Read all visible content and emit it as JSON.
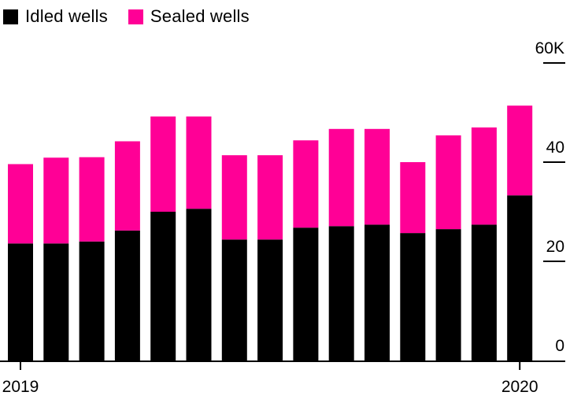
{
  "chart_data": {
    "type": "bar",
    "stacked": true,
    "title": "",
    "xlabel": "",
    "ylabel": "",
    "ylim": [
      0,
      60
    ],
    "y_ticks": [
      0,
      20,
      40,
      60
    ],
    "y_tick_labels": [
      "0",
      "20",
      "40",
      "60K"
    ],
    "x_tick_labels": [
      "2019",
      "2020"
    ],
    "x_tick_indices": [
      0,
      14
    ],
    "categories": [
      "2019",
      "",
      "",
      "",
      "",
      "",
      "",
      "",
      "",
      "",
      "",
      "",
      "",
      "",
      "2020"
    ],
    "series": [
      {
        "name": "Idled wells",
        "color": "#000000",
        "values": [
          23.6,
          23.6,
          24.0,
          26.2,
          30.0,
          30.6,
          24.4,
          24.4,
          26.8,
          27.1,
          27.4,
          25.7,
          26.5,
          27.4,
          33.3
        ]
      },
      {
        "name": "Sealed wells",
        "color": "#ff0096",
        "values": [
          16.0,
          17.3,
          17.0,
          18.0,
          19.2,
          18.6,
          17.0,
          17.0,
          17.6,
          19.6,
          19.3,
          14.3,
          18.9,
          19.6,
          18.1
        ]
      }
    ],
    "legend": "top-left",
    "grid": false
  }
}
